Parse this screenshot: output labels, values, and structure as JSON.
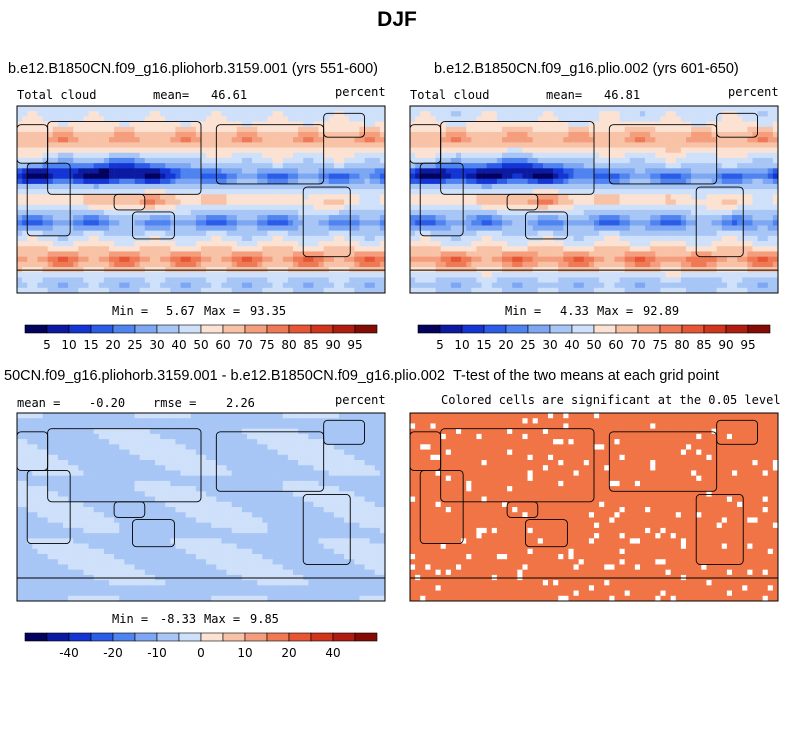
{
  "title": "DJF",
  "colors": {
    "full": [
      "#03025d",
      "#0b1aa0",
      "#1435d4",
      "#2b5ce8",
      "#4f83f0",
      "#7da6f3",
      "#a7c6f6",
      "#cfe1fa",
      "#fbe2d2",
      "#f8c2a6",
      "#f49e7e",
      "#ef7955",
      "#e65635",
      "#d1361d",
      "#b01c10",
      "#850b05"
    ],
    "diff": [
      "#03025d",
      "#0b1aa0",
      "#1435d4",
      "#2b5ce8",
      "#4f83f0",
      "#7da6f3",
      "#a7c6f6",
      "#cfe1fa",
      "#fbe2d2",
      "#f8c2a6",
      "#f49e7e",
      "#ef7955",
      "#e65635",
      "#d1361d",
      "#b01c10",
      "#850b05"
    ],
    "signif": "#f07445"
  },
  "panels": [
    {
      "id": "case1",
      "title": "b.e12.B1850CN.f09_g16.pliohorb.3159.001 (yrs 551-600)",
      "left_label": "Total cloud",
      "mean_label": "mean=",
      "mean_value": "46.61",
      "units": "percent",
      "stats": {
        "min_label": "Min =",
        "min": "5.67",
        "max_label": "Max =",
        "max": "93.35"
      }
    },
    {
      "id": "case2",
      "title": "b.e12.B1850CN.f09_g16.plio.002 (yrs 601-650)",
      "left_label": "Total cloud",
      "mean_label": "mean=",
      "mean_value": "46.81",
      "units": "percent",
      "stats": {
        "min_label": "Min =",
        "min": "4.33",
        "max_label": "Max =",
        "max": "92.89"
      }
    },
    {
      "id": "diff",
      "title": "50CN.f09_g16.pliohorb.3159.001 - b.e12.B1850CN.f09_g16.plio.002",
      "mean_label": "mean =",
      "mean_value": "-0.20",
      "rmse_label": "rmse =",
      "rmse_value": "2.26",
      "units": "percent",
      "stats": {
        "min_label": "Min =",
        "min": "-8.33",
        "max_label": "Max =",
        "max": "9.85"
      }
    },
    {
      "id": "ttest",
      "title": "T-test of the two means at each grid point",
      "subtitle": "Colored cells are significant at the 0.05 level"
    }
  ],
  "chart_data": [
    {
      "type": "heatmap",
      "title": "b.e12.B1850CN.f09_g16.pliohorb.3159.001 (yrs 551-600)",
      "field": "Total cloud",
      "units": "percent",
      "mean": 46.61,
      "min": 5.67,
      "max": 93.35,
      "colorbar_levels": [
        5,
        10,
        15,
        20,
        25,
        30,
        40,
        50,
        60,
        70,
        75,
        80,
        85,
        90,
        95
      ],
      "colorbar_labels": [
        "5",
        "10",
        "15",
        "20",
        "25",
        "30",
        "40",
        "50",
        "60",
        "70",
        "75",
        "80",
        "85",
        "90",
        "95"
      ]
    },
    {
      "type": "heatmap",
      "title": "b.e12.B1850CN.f09_g16.plio.002 (yrs 601-650)",
      "field": "Total cloud",
      "units": "percent",
      "mean": 46.81,
      "min": 4.33,
      "max": 92.89,
      "colorbar_levels": [
        5,
        10,
        15,
        20,
        25,
        30,
        40,
        50,
        60,
        70,
        75,
        80,
        85,
        90,
        95
      ],
      "colorbar_labels": [
        "5",
        "10",
        "15",
        "20",
        "25",
        "30",
        "40",
        "50",
        "60",
        "70",
        "75",
        "80",
        "85",
        "90",
        "95"
      ]
    },
    {
      "type": "heatmap",
      "title": "50CN.f09_g16.pliohorb.3159.001 - b.e12.B1850CN.f09_g16.plio.002",
      "units": "percent",
      "mean": -0.2,
      "rmse": 2.26,
      "min": -8.33,
      "max": 9.85,
      "colorbar_labels": [
        "-40",
        "-20",
        "-10",
        "0",
        "10",
        "20",
        "40"
      ]
    },
    {
      "type": "heatmap",
      "title": "T-test of the two means at each grid point",
      "subtitle": "Colored cells are significant at the 0.05 level"
    }
  ]
}
